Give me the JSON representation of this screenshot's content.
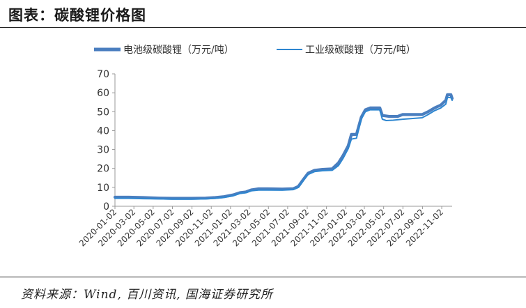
{
  "header": {
    "title": "图表：碳酸锂价格图"
  },
  "footer": {
    "source": "资料来源：Wind, 百川资讯, 国海证券研究所"
  },
  "colors": {
    "series1": "#4a7ebf",
    "series2": "#2e86d0",
    "axis": "#999999",
    "text": "#333333"
  },
  "chart_data": {
    "type": "line",
    "title": "",
    "xlabel": "",
    "ylabel": "",
    "ylim": [
      0,
      70
    ],
    "yticks": [
      0,
      10,
      20,
      30,
      40,
      50,
      60,
      70
    ],
    "grid": false,
    "legend_position": "top",
    "x_tick_labels": [
      "2020-01-02",
      "2020-03-02",
      "2020-05-02",
      "2020-07-02",
      "2020-09-02",
      "2020-11-02",
      "2021-01-02",
      "2021-03-02",
      "2021-05-02",
      "2021-07-02",
      "2021-09-02",
      "2021-11-02",
      "2022-01-02",
      "2022-03-02",
      "2022-05-02",
      "2022-07-02",
      "2022-09-02",
      "2022-11-02"
    ],
    "x_range": [
      "2020-01-02",
      "2022-12-05"
    ],
    "series": [
      {
        "name": "电池级碳酸锂（万元/吨）",
        "style": "thick",
        "points": [
          [
            "2020-01-02",
            4.8
          ],
          [
            "2020-02-15",
            4.8
          ],
          [
            "2020-04-01",
            4.6
          ],
          [
            "2020-05-20",
            4.3
          ],
          [
            "2020-07-01",
            4.2
          ],
          [
            "2020-09-01",
            4.2
          ],
          [
            "2020-10-15",
            4.3
          ],
          [
            "2020-11-15",
            4.6
          ],
          [
            "2020-12-10",
            5.0
          ],
          [
            "2021-01-10",
            6.0
          ],
          [
            "2021-02-01",
            7.2
          ],
          [
            "2021-02-20",
            7.6
          ],
          [
            "2021-03-10",
            8.7
          ],
          [
            "2021-04-01",
            9.2
          ],
          [
            "2021-05-01",
            9.2
          ],
          [
            "2021-06-15",
            9.1
          ],
          [
            "2021-07-20",
            9.3
          ],
          [
            "2021-08-05",
            10.5
          ],
          [
            "2021-08-20",
            14.0
          ],
          [
            "2021-09-05",
            17.5
          ],
          [
            "2021-09-25",
            19.0
          ],
          [
            "2021-10-20",
            19.5
          ],
          [
            "2021-11-20",
            19.8
          ],
          [
            "2021-12-10",
            23.0
          ],
          [
            "2021-12-25",
            27.0
          ],
          [
            "2022-01-10",
            32.0
          ],
          [
            "2022-01-20",
            38.0
          ],
          [
            "2022-02-05",
            38.0
          ],
          [
            "2022-02-20",
            47.0
          ],
          [
            "2022-03-05",
            51.0
          ],
          [
            "2022-03-20",
            52.0
          ],
          [
            "2022-04-20",
            52.0
          ],
          [
            "2022-04-28",
            48.0
          ],
          [
            "2022-05-20",
            47.5
          ],
          [
            "2022-06-15",
            47.5
          ],
          [
            "2022-07-01",
            48.5
          ],
          [
            "2022-08-10",
            48.5
          ],
          [
            "2022-09-01",
            48.5
          ],
          [
            "2022-09-20",
            50.0
          ],
          [
            "2022-10-10",
            52.0
          ],
          [
            "2022-10-30",
            53.5
          ],
          [
            "2022-11-15",
            56.0
          ],
          [
            "2022-11-20",
            59.0
          ],
          [
            "2022-12-01",
            59.0
          ],
          [
            "2022-12-05",
            57.0
          ]
        ]
      },
      {
        "name": "工业级碳酸锂（万元/吨）",
        "style": "thin",
        "points": [
          [
            "2020-01-02",
            4.2
          ],
          [
            "2020-02-15",
            4.2
          ],
          [
            "2020-04-01",
            4.0
          ],
          [
            "2020-05-20",
            3.9
          ],
          [
            "2020-07-01",
            3.8
          ],
          [
            "2020-09-01",
            3.8
          ],
          [
            "2020-10-15",
            3.9
          ],
          [
            "2020-11-15",
            4.2
          ],
          [
            "2020-12-10",
            4.6
          ],
          [
            "2021-01-10",
            5.5
          ],
          [
            "2021-02-01",
            6.8
          ],
          [
            "2021-02-20",
            7.2
          ],
          [
            "2021-03-10",
            8.2
          ],
          [
            "2021-04-01",
            8.6
          ],
          [
            "2021-05-01",
            8.6
          ],
          [
            "2021-06-15",
            8.5
          ],
          [
            "2021-07-20",
            8.8
          ],
          [
            "2021-08-05",
            10.0
          ],
          [
            "2021-08-20",
            13.5
          ],
          [
            "2021-09-05",
            16.8
          ],
          [
            "2021-09-25",
            18.3
          ],
          [
            "2021-10-20",
            18.8
          ],
          [
            "2021-11-20",
            19.0
          ],
          [
            "2021-12-10",
            21.5
          ],
          [
            "2021-12-25",
            25.5
          ],
          [
            "2022-01-10",
            30.5
          ],
          [
            "2022-01-20",
            35.5
          ],
          [
            "2022-02-05",
            36.0
          ],
          [
            "2022-02-20",
            46.0
          ],
          [
            "2022-03-05",
            50.0
          ],
          [
            "2022-03-20",
            51.0
          ],
          [
            "2022-04-20",
            51.0
          ],
          [
            "2022-04-28",
            46.0
          ],
          [
            "2022-05-10",
            45.3
          ],
          [
            "2022-06-01",
            45.5
          ],
          [
            "2022-07-01",
            46.0
          ],
          [
            "2022-08-10",
            46.5
          ],
          [
            "2022-09-01",
            46.8
          ],
          [
            "2022-09-20",
            48.5
          ],
          [
            "2022-10-10",
            50.5
          ],
          [
            "2022-10-30",
            52.0
          ],
          [
            "2022-11-15",
            54.0
          ],
          [
            "2022-11-20",
            57.5
          ],
          [
            "2022-12-01",
            57.5
          ],
          [
            "2022-12-05",
            56.0
          ]
        ]
      }
    ]
  }
}
